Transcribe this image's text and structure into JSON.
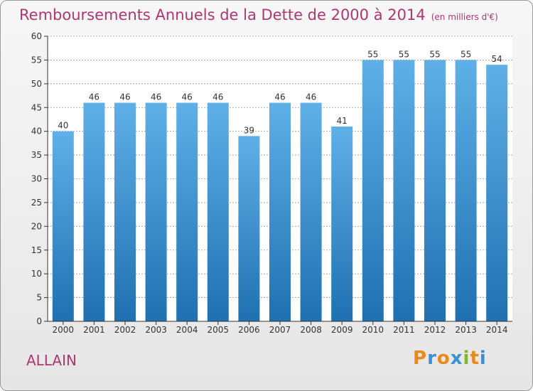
{
  "title": "Remboursements Annuels de la Dette de 2000 à 2014",
  "unit": "(en milliers d'€)",
  "commune": "ALLAIN",
  "logo": {
    "text": "Proxiti",
    "letters": [
      "P",
      "r",
      "o",
      "x",
      "i",
      "t",
      "i"
    ],
    "colors": [
      "#e8891b",
      "#3b8fd4",
      "#e8891b",
      "#3b8fd4",
      "#7fb82a",
      "#e8891b",
      "#3b8fd4"
    ]
  },
  "colors": {
    "bar_light": "#5fb0e8",
    "bar_dark": "#1f70b0",
    "title": "#b03670",
    "axis": "#333333",
    "grid": "#9a9a9a"
  },
  "chart_data": {
    "type": "bar",
    "categories": [
      "2000",
      "2001",
      "2002",
      "2003",
      "2004",
      "2005",
      "2006",
      "2007",
      "2008",
      "2009",
      "2010",
      "2011",
      "2012",
      "2013",
      "2014"
    ],
    "values": [
      40,
      46,
      46,
      46,
      46,
      46,
      39,
      46,
      46,
      41,
      55,
      55,
      55,
      55,
      54
    ],
    "data_labels": [
      "40",
      "46",
      "46",
      "46",
      "46",
      "46",
      "39",
      "46",
      "46",
      "41",
      "55",
      "55",
      "55",
      "55",
      "54"
    ],
    "ylim": [
      0,
      60
    ],
    "yticks": [
      0,
      5,
      10,
      15,
      20,
      25,
      30,
      35,
      40,
      45,
      50,
      55,
      60
    ],
    "grid": true
  }
}
